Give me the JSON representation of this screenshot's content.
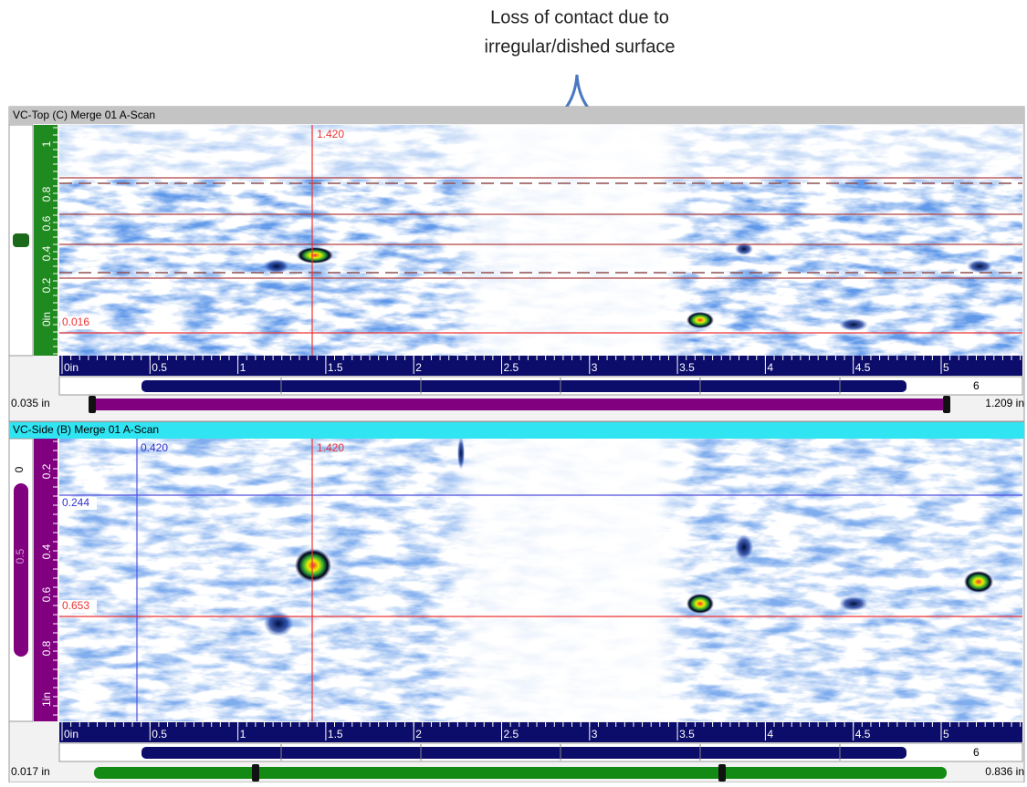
{
  "annotation": {
    "line1": "Loss of contact due to",
    "line2": "irregular/dished surface"
  },
  "panels": [
    {
      "title": "VC-Top (C) Merge 01 A-Scan",
      "cursors": {
        "x_red": "1.420",
        "y_red": "0.016"
      },
      "x_ticks": [
        "0in",
        "0.5",
        "1",
        "1.5",
        "2",
        "2.5",
        "3",
        "3.5",
        "4",
        "4.5",
        "5"
      ],
      "scroll_end": "6",
      "y_ticks": [
        "1",
        "0.8",
        "0.6",
        "0.4",
        "0.2",
        "0in"
      ],
      "range_min": "0.035 in",
      "range_max": "1.209 in"
    },
    {
      "title": "VC-Side (B) Merge 01 A-Scan",
      "cursors": {
        "x_blue": "0.420",
        "x_red": "1.420",
        "y_blue": "0.244",
        "y_red": "0.653"
      },
      "x_ticks": [
        "0in",
        "0.5",
        "1",
        "1.5",
        "2",
        "2.5",
        "3",
        "3.5",
        "4",
        "4.5",
        "5"
      ],
      "scroll_end": "6",
      "y_ticks": [
        "0.2",
        "0.4",
        "0.6",
        "0.8",
        "1in"
      ],
      "side_top": "0",
      "side_mid": "0.5",
      "range_min": "0.017 in",
      "range_max": "0.836 in"
    }
  ]
}
